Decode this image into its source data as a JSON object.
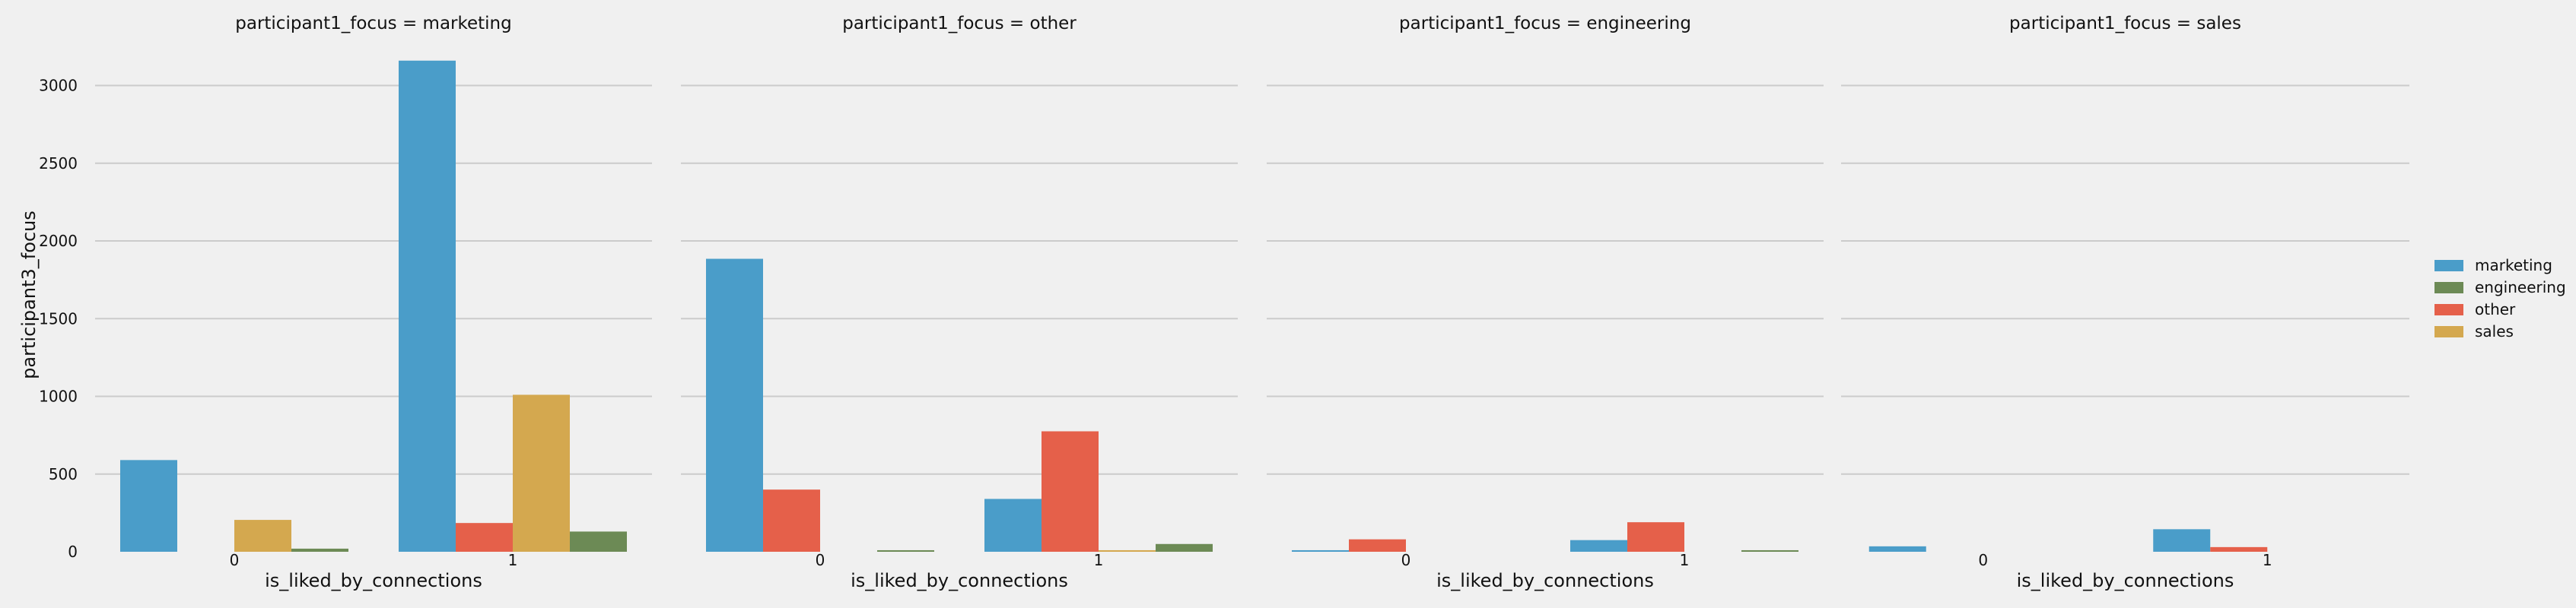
{
  "chart_data": {
    "type": "bar",
    "ylabel": "participant3_focus",
    "xlabel": "is_liked_by_connections",
    "categories": [
      "0",
      "1"
    ],
    "ylim": [
      0,
      3300
    ],
    "yticks": [
      0,
      500,
      1000,
      1500,
      2000,
      2500,
      3000
    ],
    "grid": true,
    "legend_position": "right",
    "legend": [
      {
        "name": "marketing",
        "color": "#4a9dc9"
      },
      {
        "name": "engineering",
        "color": "#6c8a55"
      },
      {
        "name": "other",
        "color": "#e5604a"
      },
      {
        "name": "sales",
        "color": "#d4a84f"
      }
    ],
    "panels": [
      {
        "title": "participant1_focus = marketing",
        "series": [
          {
            "name": "marketing",
            "values": [
              590,
              3160
            ]
          },
          {
            "name": "other",
            "values": [
              0,
              185
            ]
          },
          {
            "name": "sales",
            "values": [
              205,
              1010
            ]
          },
          {
            "name": "engineering",
            "values": [
              20,
              130
            ]
          }
        ]
      },
      {
        "title": "participant1_focus = other",
        "series": [
          {
            "name": "marketing",
            "values": [
              1885,
              340
            ]
          },
          {
            "name": "other",
            "values": [
              400,
              775
            ]
          },
          {
            "name": "sales",
            "values": [
              0,
              10
            ]
          },
          {
            "name": "engineering",
            "values": [
              10,
              50
            ]
          }
        ]
      },
      {
        "title": "participant1_focus = engineering",
        "series": [
          {
            "name": "marketing",
            "values": [
              10,
              75
            ]
          },
          {
            "name": "other",
            "values": [
              80,
              190
            ]
          },
          {
            "name": "sales",
            "values": [
              0,
              0
            ]
          },
          {
            "name": "engineering",
            "values": [
              0,
              10
            ]
          }
        ]
      },
      {
        "title": "participant1_focus = sales",
        "series": [
          {
            "name": "marketing",
            "values": [
              35,
              145
            ]
          },
          {
            "name": "other",
            "values": [
              0,
              30
            ]
          },
          {
            "name": "sales",
            "values": [
              0,
              0
            ]
          },
          {
            "name": "engineering",
            "values": [
              0,
              0
            ]
          }
        ]
      }
    ]
  }
}
